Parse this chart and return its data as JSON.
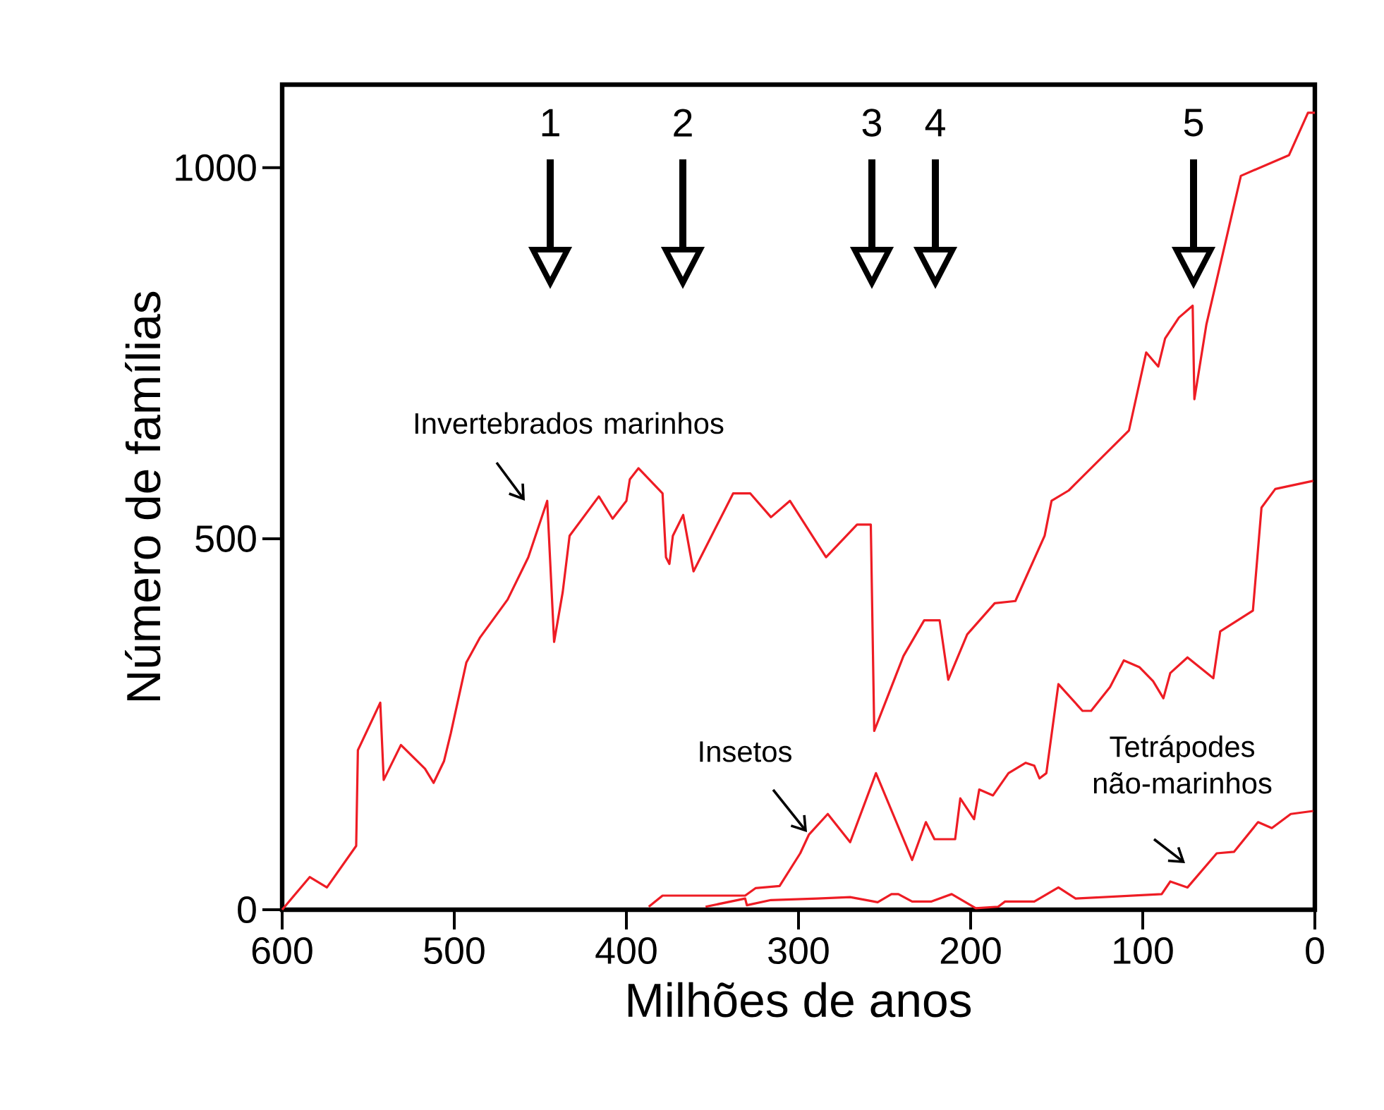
{
  "chart_data": {
    "type": "line",
    "xlabel": "Milhões de anos",
    "ylabel": "Número de famílias",
    "xlim": [
      600,
      0
    ],
    "ylim": [
      0,
      1112
    ],
    "xticks": [
      600,
      500,
      400,
      300,
      200,
      100,
      0
    ],
    "yticks": [
      0,
      500,
      1000
    ],
    "grid": false,
    "legend": false,
    "marker": "none",
    "line_style": "solid",
    "series": [
      {
        "name": "Invertebrados marinhos",
        "color": "#ee1c24",
        "x": [
          600,
          584,
          574,
          557,
          556,
          543,
          541,
          531,
          517,
          512,
          506,
          502,
          493,
          485,
          469,
          457,
          446,
          442,
          437,
          433,
          416,
          408,
          400,
          398,
          393,
          379,
          377,
          375,
          373,
          367,
          363,
          361,
          338,
          328,
          316,
          305,
          284,
          266,
          258,
          256,
          239,
          227,
          218,
          213,
          202,
          186,
          174,
          157,
          153,
          143,
          108,
          98,
          91,
          87,
          79,
          71,
          70,
          63,
          43,
          15,
          4,
          0
        ],
        "values": [
          0,
          44,
          30,
          86,
          215,
          279,
          175,
          222,
          190,
          171,
          200,
          238,
          333,
          367,
          418,
          475,
          551,
          361,
          428,
          504,
          557,
          527,
          551,
          580,
          595,
          561,
          475,
          466,
          504,
          532,
          481,
          456,
          561,
          561,
          529,
          551,
          475,
          519,
          519,
          241,
          342,
          390,
          390,
          310,
          371,
          413,
          416,
          504,
          551,
          565,
          646,
          751,
          732,
          770,
          798,
          814,
          688,
          789,
          989,
          1017,
          1074,
          1074
        ]
      },
      {
        "name": "Insetos",
        "color": "#ee1c24",
        "x": [
          387,
          379,
          331,
          325,
          311,
          299,
          294,
          283,
          270,
          255,
          234,
          226,
          221,
          209,
          206,
          198,
          195,
          187,
          178,
          168,
          163,
          160,
          156,
          149,
          135,
          130,
          119,
          111,
          102,
          94,
          88,
          84,
          74,
          59,
          55,
          36,
          31,
          23,
          1
        ],
        "values": [
          4,
          19,
          19,
          29,
          32,
          76,
          101,
          129,
          91,
          184,
          67,
          118,
          95,
          95,
          150,
          122,
          162,
          154,
          184,
          198,
          194,
          177,
          184,
          304,
          268,
          268,
          300,
          336,
          327,
          308,
          285,
          319,
          340,
          312,
          375,
          403,
          542,
          567,
          578
        ]
      },
      {
        "name": "Tetrápodes não-marinhos",
        "color": "#ee1c24",
        "x": [
          354,
          331,
          330,
          316,
          289,
          270,
          254,
          246,
          242,
          234,
          223,
          211,
          197,
          184,
          180,
          163,
          149,
          139,
          89,
          84,
          74,
          57,
          47,
          33,
          25,
          14,
          1
        ],
        "values": [
          4,
          15,
          6,
          13,
          15,
          17,
          10,
          21,
          21,
          11,
          11,
          21,
          2,
          4,
          11,
          11,
          30,
          15,
          21,
          38,
          30,
          76,
          78,
          118,
          110,
          129,
          133
        ]
      }
    ],
    "annotations": [
      "1",
      "2",
      "3",
      "4",
      "5"
    ]
  }
}
